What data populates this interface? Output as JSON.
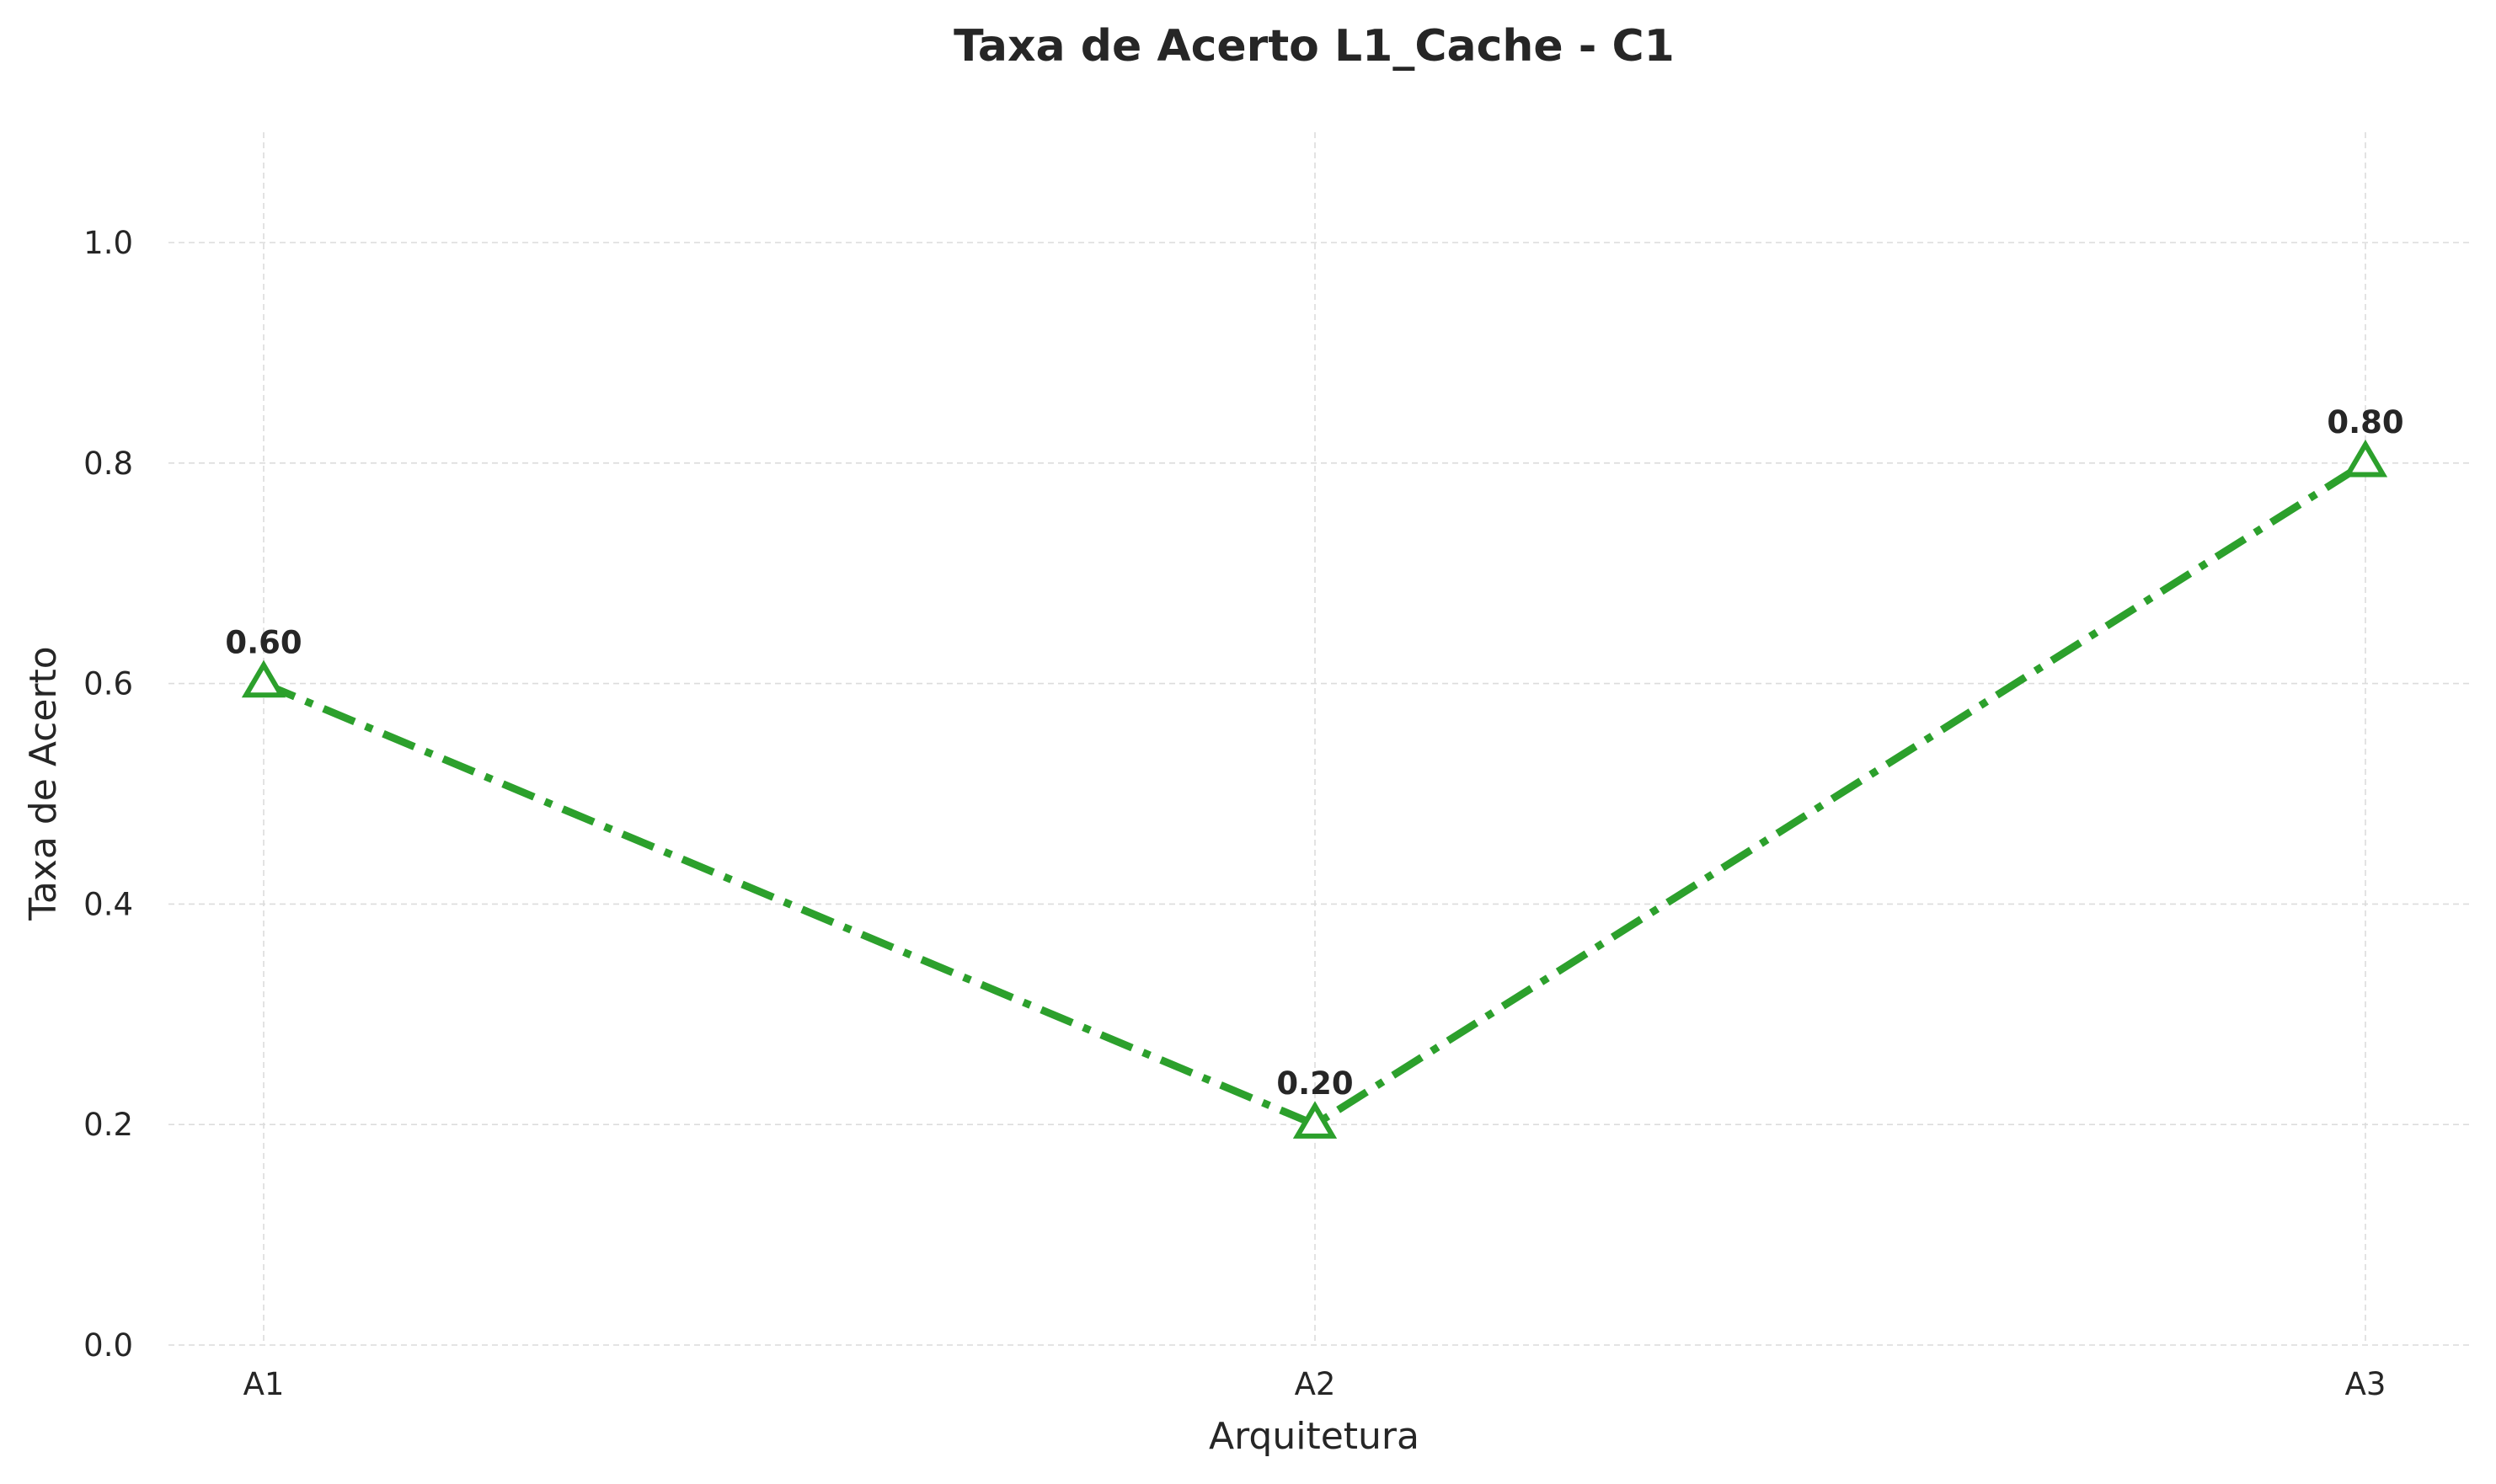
{
  "chart_data": {
    "type": "line",
    "title": "Taxa de Acerto L1_Cache - C1",
    "xlabel": "Arquitetura",
    "ylabel": "Taxa de Acerto",
    "categories": [
      "A1",
      "A2",
      "A3"
    ],
    "series": [
      {
        "values": [
          0.6,
          0.2,
          0.8
        ],
        "data_labels": [
          "0.60",
          "0.20",
          "0.80"
        ],
        "color": "#2ca02c",
        "marker": "triangle-up-hollow",
        "line_style": "dash-dot"
      }
    ],
    "ylim": [
      0,
      1.1
    ],
    "yticks": [
      0.0,
      0.2,
      0.4,
      0.6,
      0.8,
      1.0
    ],
    "ytick_labels": [
      "0.0",
      "0.2",
      "0.4",
      "0.6",
      "0.8",
      "1.0"
    ],
    "grid": true,
    "legend": "none"
  }
}
